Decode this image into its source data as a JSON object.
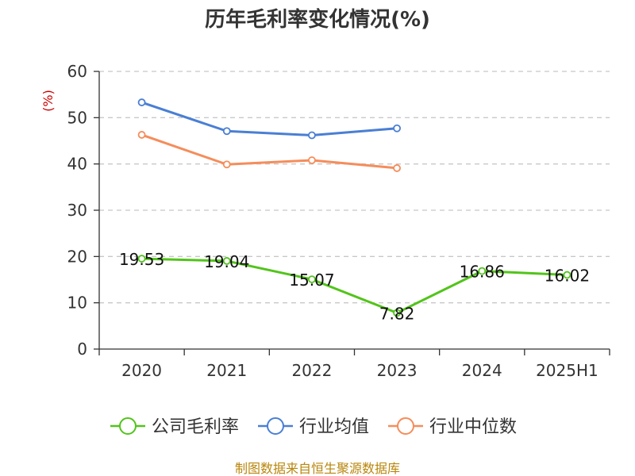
{
  "chart_data": {
    "type": "line",
    "title": "历年毛利率变化情况(%)",
    "ylabel": "(%)",
    "ylim": [
      0,
      60
    ],
    "yticks": [
      0,
      10,
      20,
      30,
      40,
      50,
      60
    ],
    "categories": [
      "2020",
      "2021",
      "2022",
      "2023",
      "2024",
      "2025H1"
    ],
    "grid": true,
    "legend_position": "bottom",
    "series": [
      {
        "name": "公司毛利率",
        "color": "#52c41a",
        "values": [
          19.53,
          19.04,
          15.07,
          7.82,
          16.86,
          16.02
        ],
        "labels": [
          "19.53",
          "19.04",
          "15.07",
          "7.82",
          "16.86",
          "16.02"
        ]
      },
      {
        "name": "行业均值",
        "color": "#4a7fd4",
        "values": [
          53.3,
          47.1,
          46.2,
          47.7,
          null,
          null
        ]
      },
      {
        "name": "行业中位数",
        "color": "#f58d5b",
        "values": [
          46.3,
          39.9,
          40.8,
          39.1,
          null,
          null
        ]
      }
    ],
    "source": "制图数据来自恒生聚源数据库"
  }
}
